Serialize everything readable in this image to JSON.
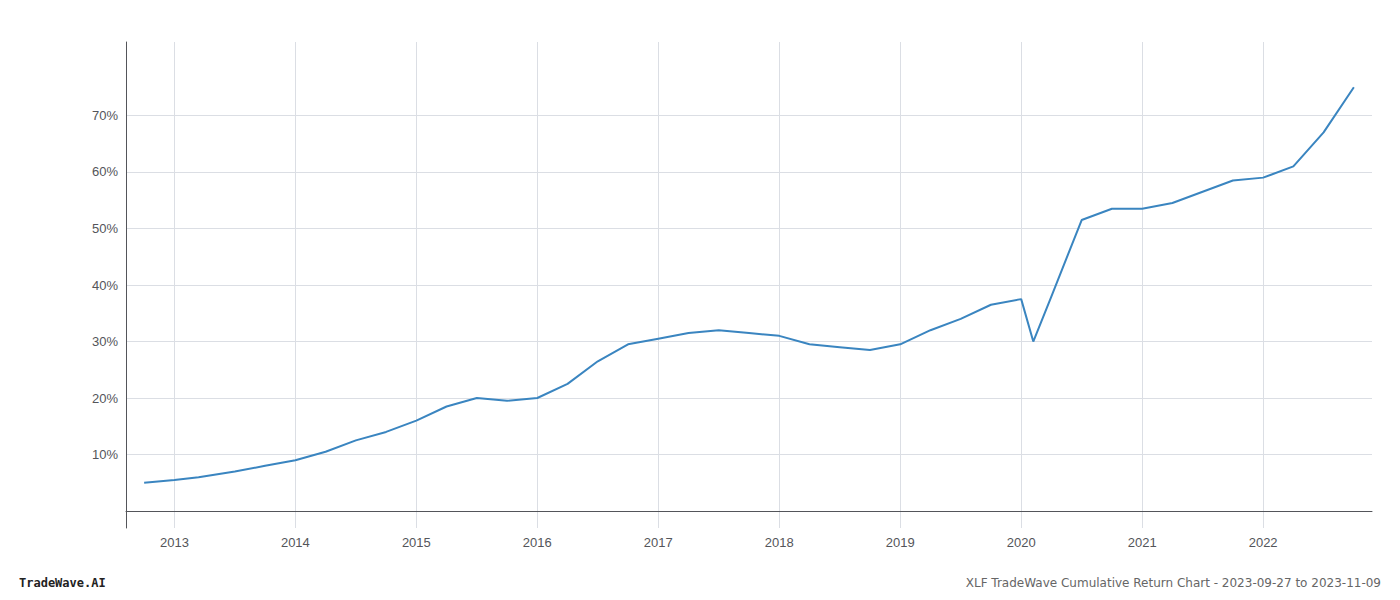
{
  "chart_data": {
    "type": "line",
    "title": "XLF TradeWave Cumulative Return Chart - 2023-09-27 to 2023-11-09",
    "annotations": [
      "TradeWave.AI"
    ],
    "color": "#3a85c0",
    "x": [
      2012.75,
      2013.0,
      2013.2,
      2013.5,
      2013.75,
      2014.0,
      2014.25,
      2014.5,
      2014.75,
      2015.0,
      2015.25,
      2015.5,
      2015.75,
      2016.0,
      2016.25,
      2016.5,
      2016.75,
      2017.0,
      2017.25,
      2017.5,
      2017.75,
      2018.0,
      2018.25,
      2018.5,
      2018.75,
      2019.0,
      2019.25,
      2019.5,
      2019.75,
      2020.0,
      2020.1,
      2020.25,
      2020.5,
      2020.75,
      2021.0,
      2021.25,
      2021.5,
      2021.75,
      2022.0,
      2022.25,
      2022.5,
      2022.75
    ],
    "values": [
      5.0,
      5.5,
      6.0,
      7.0,
      8.0,
      9.0,
      10.5,
      12.5,
      14.0,
      16.0,
      18.5,
      20.0,
      19.5,
      20.0,
      22.5,
      26.5,
      29.5,
      30.5,
      31.5,
      32.0,
      31.5,
      31.0,
      29.5,
      29.0,
      28.5,
      29.5,
      32.0,
      34.0,
      36.5,
      37.5,
      30.0,
      38.0,
      51.5,
      53.5,
      53.5,
      54.5,
      56.5,
      58.5,
      59.0,
      61.0,
      67.0,
      75.0
    ],
    "xlim": [
      2012.6,
      2022.9
    ],
    "xticks": [
      2013,
      2014,
      2015,
      2016,
      2017,
      2018,
      2019,
      2020,
      2021,
      2022
    ],
    "ylim": [
      -3,
      83
    ],
    "yticks": [
      {
        "value": 10,
        "label": "10%"
      },
      {
        "value": 20,
        "label": "20%"
      },
      {
        "value": 30,
        "label": "30%"
      },
      {
        "value": 40,
        "label": "40%"
      },
      {
        "value": 50,
        "label": "50%"
      },
      {
        "value": 60,
        "label": "60%"
      },
      {
        "value": 70,
        "label": "70%"
      }
    ],
    "grid": true
  }
}
